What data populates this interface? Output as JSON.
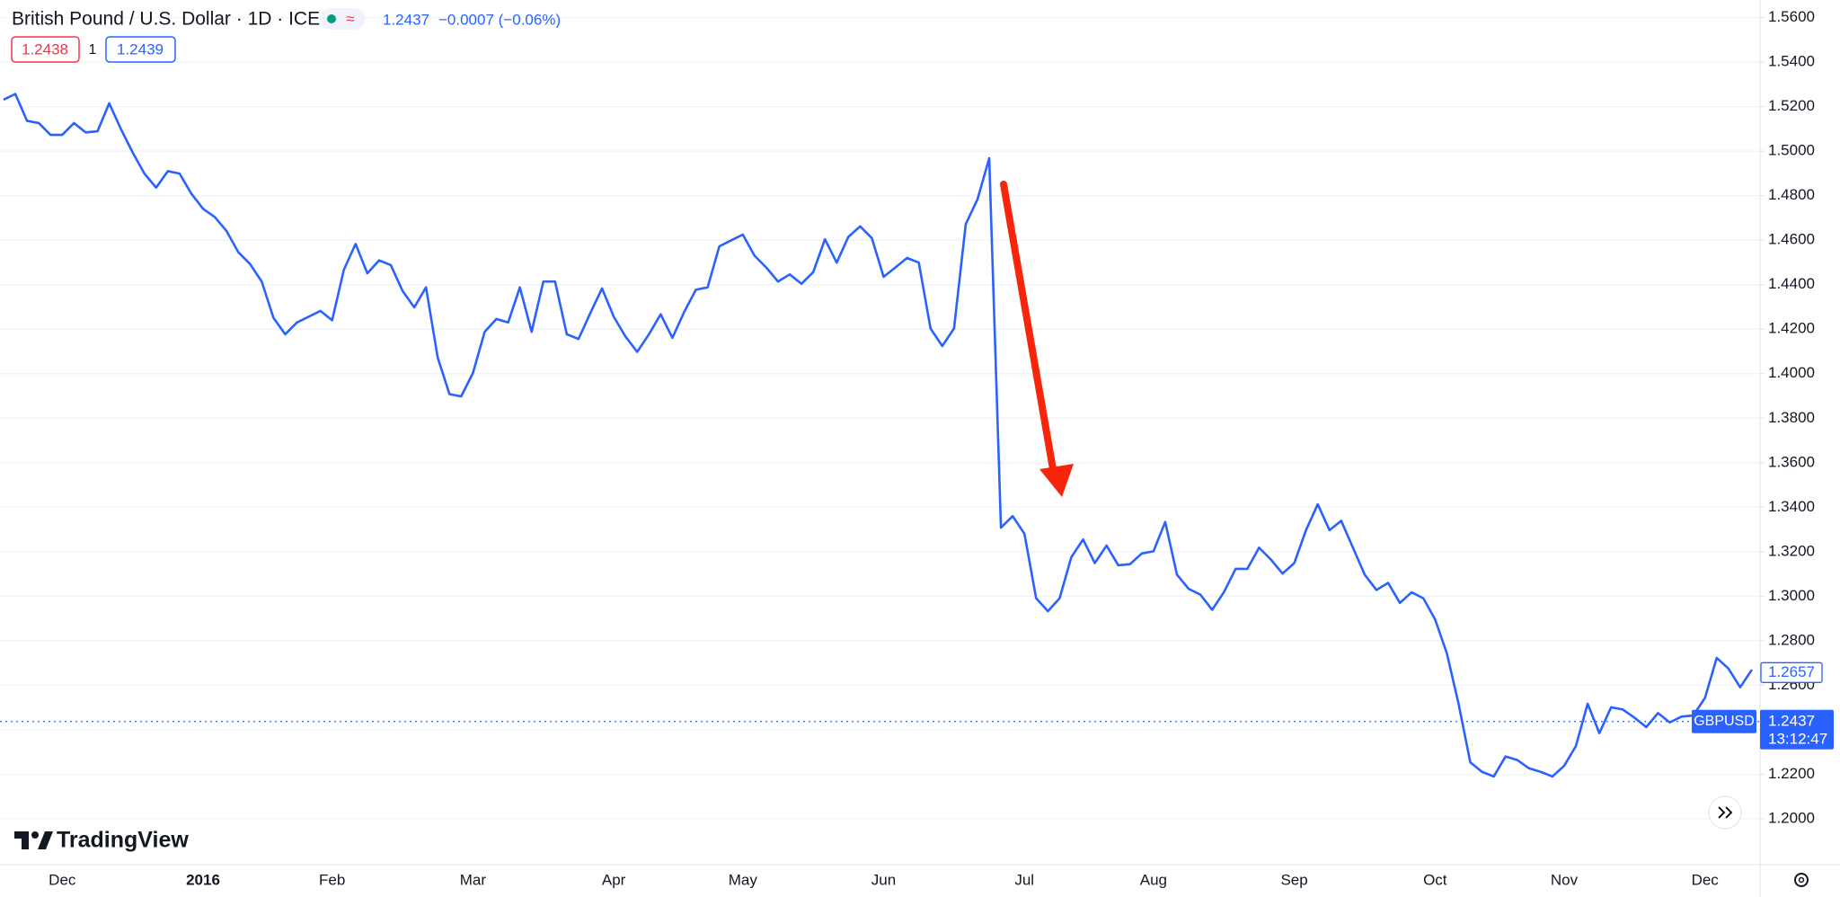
{
  "chart_data": {
    "type": "line",
    "title": "British Pound / U.S. Dollar · 1D · ICE",
    "indicator": "≈",
    "change": "−0.0007 (−0.06%)",
    "bid": 1.2438,
    "lot": 1,
    "ask": 1.2439,
    "last_price": 1.2437,
    "countdown": "13:12:47",
    "marker_price": 1.2657,
    "brand": "TradingView",
    "categories": [
      null,
      null,
      null,
      null,
      null,
      "Dec",
      null,
      null,
      null,
      null,
      null,
      null,
      null,
      null,
      null,
      null,
      null,
      "2016",
      null,
      null,
      null,
      null,
      null,
      null,
      null,
      null,
      null,
      null,
      "Feb",
      null,
      null,
      null,
      null,
      null,
      null,
      null,
      null,
      null,
      null,
      null,
      "Mar",
      null,
      null,
      null,
      null,
      null,
      null,
      null,
      null,
      null,
      null,
      null,
      "Apr",
      null,
      null,
      null,
      null,
      null,
      null,
      null,
      null,
      null,
      null,
      "May",
      null,
      null,
      null,
      null,
      null,
      null,
      null,
      null,
      null,
      null,
      null,
      "Jun",
      null,
      null,
      null,
      null,
      null,
      null,
      null,
      null,
      null,
      null,
      null,
      "Jul",
      null,
      null,
      null,
      null,
      null,
      null,
      null,
      null,
      null,
      null,
      "Aug",
      null,
      null,
      null,
      null,
      null,
      null,
      null,
      null,
      null,
      null,
      null,
      "Sep",
      null,
      null,
      null,
      null,
      null,
      null,
      null,
      null,
      null,
      null,
      null,
      "Oct",
      null,
      null,
      null,
      null,
      null,
      null,
      null,
      null,
      null,
      null,
      "Nov",
      null,
      null,
      null,
      null,
      null,
      null,
      null,
      null,
      null,
      null,
      null,
      "Dec",
      null,
      null,
      null,
      null
    ],
    "series": [
      {
        "name": "GBPUSD",
        "color": "#2962ff",
        "values": [
          1.5231,
          1.5257,
          1.5136,
          1.5126,
          1.5073,
          1.5073,
          1.5126,
          1.5084,
          1.5089,
          1.5215,
          1.5099,
          1.4994,
          1.4899,
          1.4836,
          1.491,
          1.4899,
          1.4809,
          1.4741,
          1.4704,
          1.4641,
          1.4546,
          1.4493,
          1.4414,
          1.4251,
          1.4177,
          1.423,
          1.4256,
          1.4282,
          1.424,
          1.4467,
          1.4583,
          1.4451,
          1.4509,
          1.4488,
          1.4372,
          1.4298,
          1.4388,
          1.4072,
          1.3908,
          1.3898,
          1.4003,
          1.4188,
          1.4246,
          1.423,
          1.4388,
          1.4188,
          1.4414,
          1.4414,
          1.4177,
          1.4156,
          1.4272,
          1.4383,
          1.4256,
          1.4167,
          1.4098,
          1.4177,
          1.4267,
          1.4161,
          1.4277,
          1.4377,
          1.4388,
          1.4572,
          1.4599,
          1.4625,
          1.453,
          1.4477,
          1.4414,
          1.4446,
          1.4404,
          1.4456,
          1.4604,
          1.4499,
          1.4615,
          1.4662,
          1.4609,
          1.4435,
          1.4477,
          1.452,
          1.4499,
          1.4203,
          1.4124,
          1.4203,
          1.4672,
          1.4783,
          1.4968,
          1.3308,
          1.336,
          1.3281,
          1.2991,
          1.2933,
          1.2991,
          1.3176,
          1.3255,
          1.3149,
          1.3228,
          1.3139,
          1.3144,
          1.3192,
          1.3202,
          1.3334,
          1.3097,
          1.3033,
          1.3007,
          1.2939,
          1.3018,
          1.3123,
          1.3123,
          1.3218,
          1.3165,
          1.3102,
          1.3149,
          1.3297,
          1.3413,
          1.3297,
          1.3339,
          1.3218,
          1.3097,
          1.3028,
          1.306,
          1.297,
          1.3018,
          1.2991,
          1.2896,
          1.2744,
          1.2517,
          1.2254,
          1.2211,
          1.219,
          1.228,
          1.2264,
          1.2227,
          1.2211,
          1.219,
          1.2238,
          1.2327,
          1.2517,
          1.2385,
          1.2501,
          1.2491,
          1.2454,
          1.2412,
          1.2475,
          1.2433,
          1.2459,
          1.2464,
          1.2543,
          1.2723,
          1.2675,
          1.2591,
          1.267
        ]
      }
    ],
    "ylim": [
      1.1794,
      1.5679
    ],
    "yticks": [
      {
        "value": 1.2,
        "label": "1.2000"
      },
      {
        "value": 1.22,
        "label": "1.2200"
      },
      {
        "value": 1.24,
        "label": "1.2400"
      },
      {
        "value": 1.26,
        "label": "1.2600"
      },
      {
        "value": 1.28,
        "label": "1.2800"
      },
      {
        "value": 1.3,
        "label": "1.3000"
      },
      {
        "value": 1.32,
        "label": "1.3200"
      },
      {
        "value": 1.34,
        "label": "1.3400"
      },
      {
        "value": 1.36,
        "label": "1.3600"
      },
      {
        "value": 1.38,
        "label": "1.3800"
      },
      {
        "value": 1.4,
        "label": "1.4000"
      },
      {
        "value": 1.42,
        "label": "1.4200"
      },
      {
        "value": 1.44,
        "label": "1.4400"
      },
      {
        "value": 1.46,
        "label": "1.4600"
      },
      {
        "value": 1.48,
        "label": "1.4800"
      },
      {
        "value": 1.5,
        "label": "1.5000"
      },
      {
        "value": 1.52,
        "label": "1.5200"
      },
      {
        "value": 1.54,
        "label": "1.5400"
      },
      {
        "value": 1.56,
        "label": "1.5600"
      }
    ],
    "grid": true
  }
}
